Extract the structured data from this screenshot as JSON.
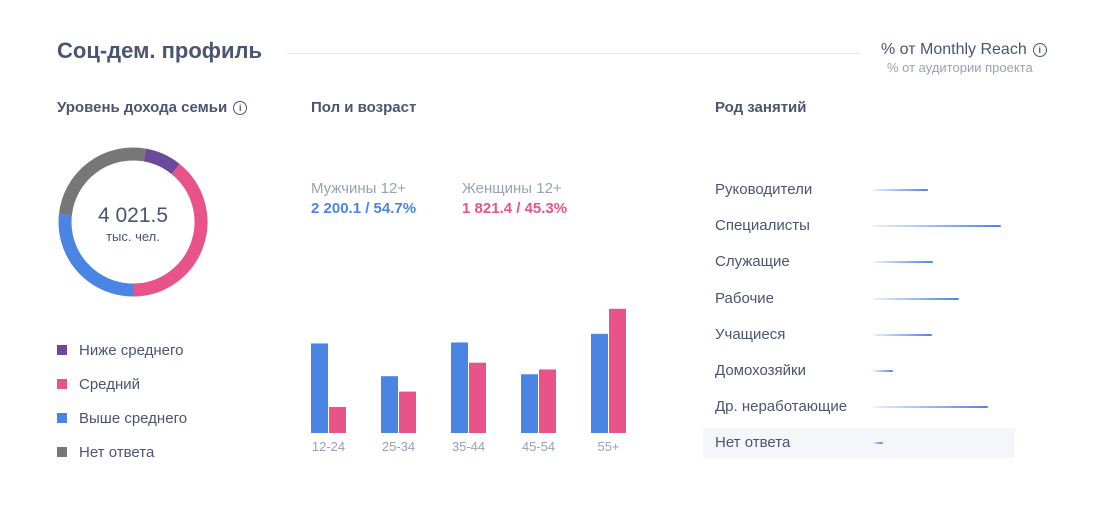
{
  "header": {
    "title": "Соц-дем. профиль",
    "metric_label": "% от Monthly Reach",
    "metric_sublabel": "% от аудитории проекта",
    "info_icon": "info-icon"
  },
  "colors": {
    "purple": "#6b4a9c",
    "pink": "#e8538a",
    "blue": "#4a85e3",
    "gray": "#777777",
    "text": "#4b5470",
    "muted": "#9aa1b2"
  },
  "chart_data": [
    {
      "type": "pie",
      "title": "Уровень дохода семьи",
      "center_value": "4 021.5",
      "center_unit": "тыс. чел.",
      "categories": [
        "Ниже среднего",
        "Средний",
        "Выше среднего",
        "Нет ответа"
      ],
      "values": [
        8,
        39,
        27,
        26
      ],
      "colors": [
        "#6b4a9c",
        "#e8538a",
        "#4a85e3",
        "#777777"
      ],
      "legend": "below"
    },
    {
      "type": "bar",
      "title": "Пол и возраст",
      "categories": [
        "12-24",
        "25-34",
        "35-44",
        "45-54",
        "55+"
      ],
      "series": [
        {
          "name": "Мужчины 12+",
          "summary": "2 200.1 / 54.7%",
          "color": "#4a85e3",
          "values": [
            93,
            59,
            94,
            61,
            103
          ]
        },
        {
          "name": "Женщины 12+",
          "summary": "1 821.4 / 45.3%",
          "color": "#e8538a",
          "values": [
            27,
            43,
            73,
            66,
            129
          ]
        }
      ],
      "ylim": [
        0,
        135
      ],
      "grid": false
    },
    {
      "type": "bar",
      "orientation": "horizontal",
      "title": "Род занятий",
      "categories": [
        "Руководители",
        "Специалисты",
        "Служащие",
        "Рабочие",
        "Учащиеся",
        "Домохозяйки",
        "Др. неработающие",
        "Нет ответа"
      ],
      "values": [
        55,
        128,
        60,
        86,
        59,
        20,
        115,
        10
      ],
      "xlim": [
        0,
        140
      ],
      "highlighted": "Нет ответа"
    }
  ]
}
